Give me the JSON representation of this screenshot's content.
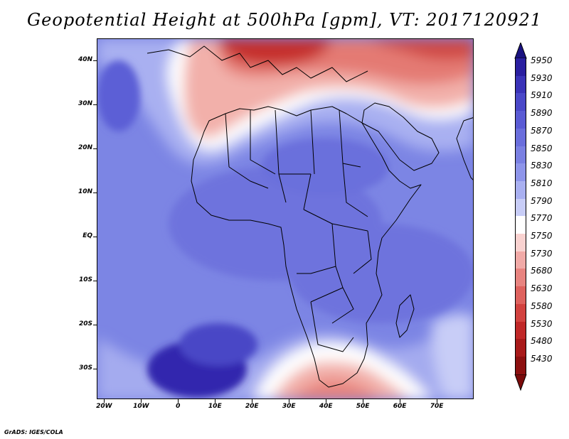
{
  "title": "Geopotential Height at 500hPa [gpm], VT: 2017120921",
  "credit": "GrADS: IGES/COLA",
  "latitude_labels": [
    "40N",
    "30N",
    "20N",
    "10N",
    "EQ",
    "10S",
    "20S",
    "30S"
  ],
  "latitude_values": [
    40,
    30,
    20,
    10,
    0,
    -10,
    -20,
    -30
  ],
  "longitude_labels": [
    "20W",
    "10W",
    "0",
    "10E",
    "20E",
    "30E",
    "40E",
    "50E",
    "60E",
    "70E"
  ],
  "longitude_values": [
    -20,
    -10,
    0,
    10,
    20,
    30,
    40,
    50,
    60,
    70
  ],
  "map_extent": {
    "lon_min": -22,
    "lon_max": 80,
    "lat_min": -37,
    "lat_max": 45
  },
  "colorbar": {
    "levels": [
      "5950",
      "5930",
      "5910",
      "5890",
      "5870",
      "5850",
      "5830",
      "5810",
      "5790",
      "5770",
      "5750",
      "5730",
      "5680",
      "5630",
      "5580",
      "5530",
      "5480",
      "5430"
    ],
    "colors": [
      "#2a1fa0",
      "#3a33b8",
      "#4a48c8",
      "#5a5bd4",
      "#6a6edc",
      "#7a80e2",
      "#8e95ea",
      "#a9b0f1",
      "#c8cdf7",
      "#ffffff",
      "#f9d2d0",
      "#f1aaa7",
      "#e88480",
      "#de625e",
      "#d2423f",
      "#c02828",
      "#a81a1a",
      "#8c1010"
    ],
    "max_arrow_color": "#1a1280",
    "min_arrow_color": "#7a0a0a"
  },
  "field_colors": {
    "ocean_base": "#7f87e6",
    "deep_blue": "#3327ae",
    "mid_blue": "#5d60d6",
    "light_blue": "#aab1f1",
    "white_band": "#ffffff",
    "light_red": "#f4b5b0",
    "mid_red": "#e47a73",
    "dark_red": "#c22a28"
  }
}
